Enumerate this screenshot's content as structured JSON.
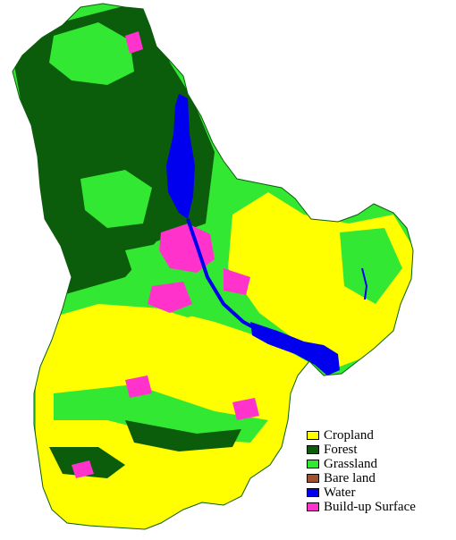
{
  "legend": {
    "items": [
      {
        "label": "Cropland",
        "color": "#ffff00"
      },
      {
        "label": "Forest",
        "color": "#0b5d0b"
      },
      {
        "label": "Grassland",
        "color": "#33e833"
      },
      {
        "label": "Bare land",
        "color": "#a0522d"
      },
      {
        "label": "Water",
        "color": "#0000ee"
      },
      {
        "label": "Build-up Surface",
        "color": "#ff33cc"
      }
    ]
  }
}
